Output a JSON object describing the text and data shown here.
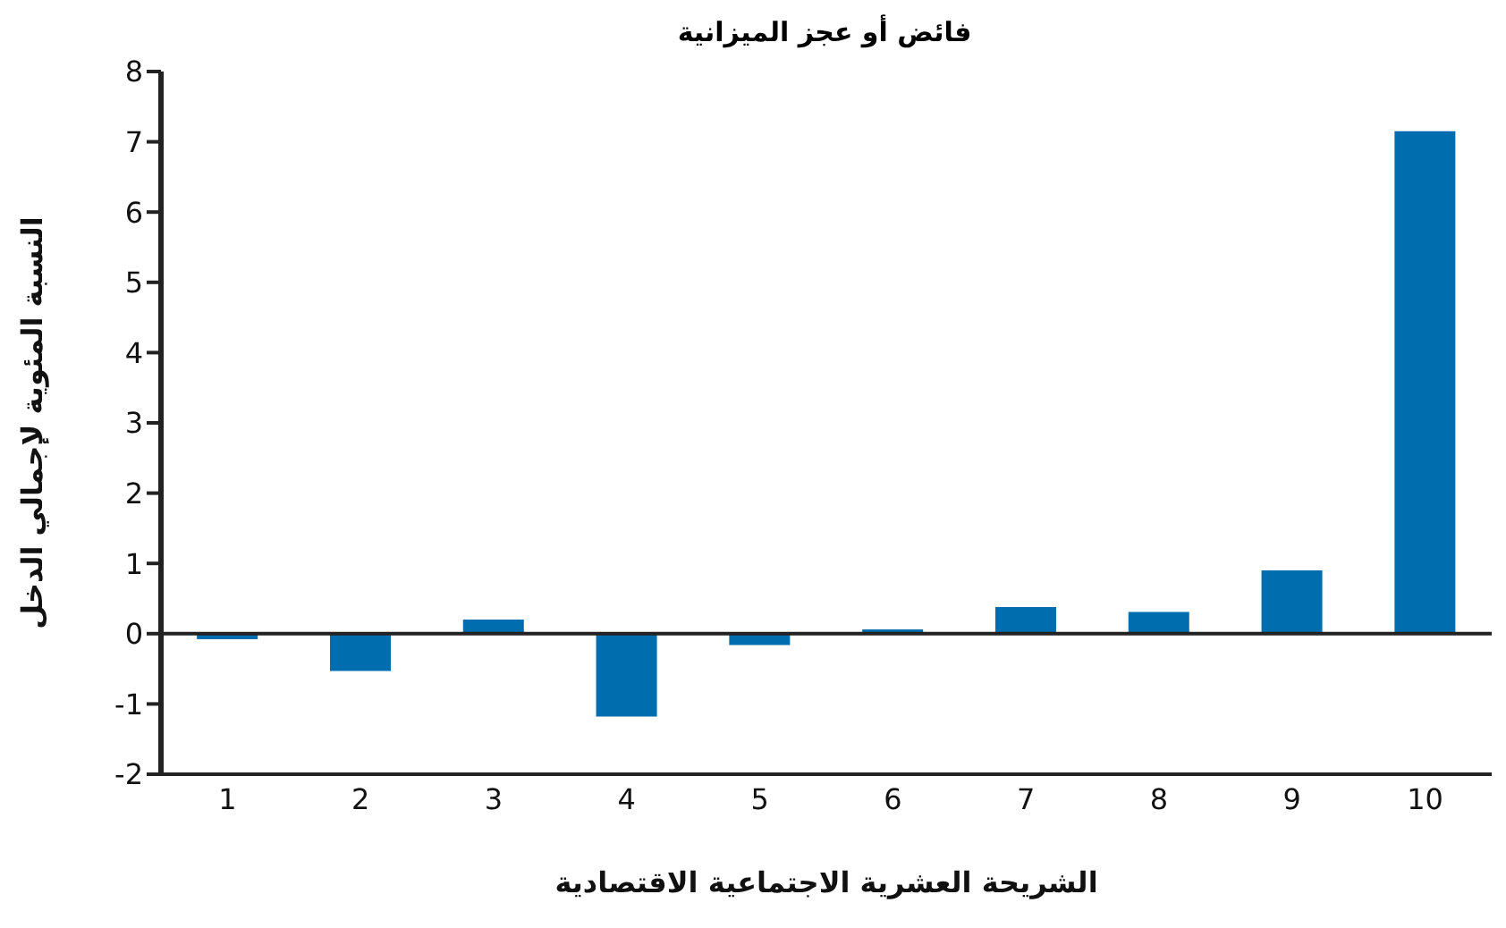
{
  "chart_data": {
    "type": "bar",
    "title": "فائض أو عجز الميزانية",
    "xlabel": "الشريحة العشرية الاجتماعية الاقتصادية",
    "ylabel": "النسبة المئوية لإجمالي الدخل",
    "categories": [
      "1",
      "2",
      "3",
      "4",
      "5",
      "6",
      "7",
      "8",
      "9",
      "10"
    ],
    "values": [
      -0.08,
      -0.53,
      0.2,
      -1.18,
      -0.16,
      0.06,
      0.38,
      0.31,
      0.9,
      7.15
    ],
    "color": "#006dae",
    "ylim": [
      -2,
      8
    ],
    "yticks": [
      -2,
      -1,
      0,
      1,
      2,
      3,
      4,
      5,
      6,
      7,
      8
    ],
    "ref_lines": [
      {
        "axis": "y",
        "value": 0,
        "label": null,
        "color": "#222222"
      }
    ],
    "grid": false,
    "legend": false
  }
}
